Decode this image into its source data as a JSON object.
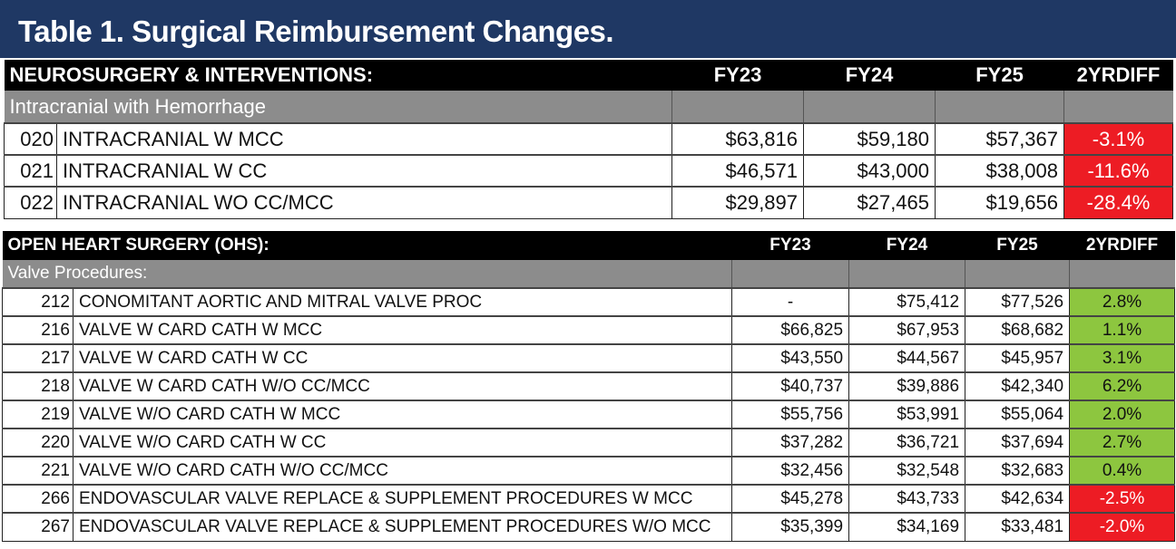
{
  "title": "Table 1. Surgical Reimbursement Changes.",
  "colors": {
    "title_bg": "#1f3864",
    "negative": "#ed1c24",
    "positive": "#8dc63f",
    "subheader": "#8c8c8c"
  },
  "tables": [
    {
      "heading": "NEUROSURGERY & INTERVENTIONS:",
      "columns": [
        "FY23",
        "FY24",
        "FY25",
        "2YRDIFF"
      ],
      "subheading": "Intracranial with Hemorrhage",
      "rows": [
        {
          "code": "020",
          "desc": "INTRACRANIAL W MCC",
          "fy23": "$63,816",
          "fy24": "$59,180",
          "fy25": "$57,367",
          "diff": "-3.1%"
        },
        {
          "code": "021",
          "desc": "INTRACRANIAL W CC",
          "fy23": "$46,571",
          "fy24": "$43,000",
          "fy25": "$38,008",
          "diff": "-11.6%"
        },
        {
          "code": "022",
          "desc": "INTRACRANIAL WO CC/MCC",
          "fy23": "$29,897",
          "fy24": "$27,465",
          "fy25": "$19,656",
          "diff": "-28.4%"
        }
      ]
    },
    {
      "heading": "OPEN HEART SURGERY (OHS):",
      "columns": [
        "FY23",
        "FY24",
        "FY25",
        "2YRDIFF"
      ],
      "subheading": "Valve Procedures:",
      "rows": [
        {
          "code": "212",
          "desc": "CONOMITANT AORTIC AND MITRAL VALVE PROC",
          "fy23": "-",
          "fy24": "$75,412",
          "fy25": "$77,526",
          "diff": "2.8%"
        },
        {
          "code": "216",
          "desc": "VALVE W CARD CATH W MCC",
          "fy23": "$66,825",
          "fy24": "$67,953",
          "fy25": "$68,682",
          "diff": "1.1%"
        },
        {
          "code": "217",
          "desc": "VALVE W CARD CATH W CC",
          "fy23": "$43,550",
          "fy24": "$44,567",
          "fy25": "$45,957",
          "diff": "3.1%"
        },
        {
          "code": "218",
          "desc": "VALVE W CARD CATH W/O CC/MCC",
          "fy23": "$40,737",
          "fy24": "$39,886",
          "fy25": "$42,340",
          "diff": "6.2%"
        },
        {
          "code": "219",
          "desc": "VALVE W/O CARD CATH W MCC",
          "fy23": "$55,756",
          "fy24": "$53,991",
          "fy25": "$55,064",
          "diff": "2.0%"
        },
        {
          "code": "220",
          "desc": "VALVE W/O CARD CATH W CC",
          "fy23": "$37,282",
          "fy24": "$36,721",
          "fy25": "$37,694",
          "diff": "2.7%"
        },
        {
          "code": "221",
          "desc": "VALVE W/O CARD CATH W/O CC/MCC",
          "fy23": "$32,456",
          "fy24": "$32,548",
          "fy25": "$32,683",
          "diff": "0.4%"
        },
        {
          "code": "266",
          "desc": "ENDOVASCULAR VALVE REPLACE & SUPPLEMENT PROCEDURES W MCC",
          "fy23": "$45,278",
          "fy24": "$43,733",
          "fy25": "$42,634",
          "diff": "-2.5%"
        },
        {
          "code": "267",
          "desc": "ENDOVASCULAR VALVE REPLACE & SUPPLEMENT PROCEDURES W/O MCC",
          "fy23": "$35,399",
          "fy24": "$34,169",
          "fy25": "$33,481",
          "diff": "-2.0%"
        }
      ]
    }
  ]
}
